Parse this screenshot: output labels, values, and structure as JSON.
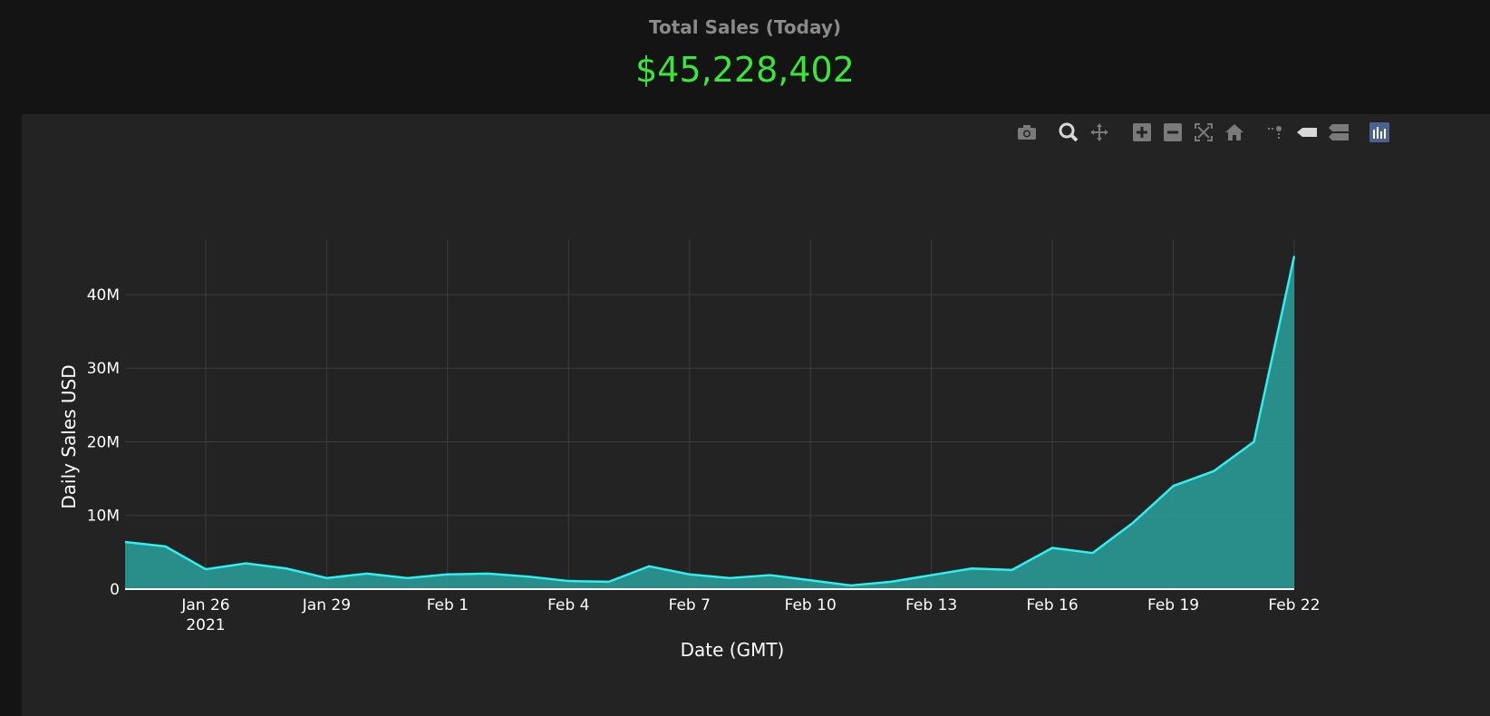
{
  "header": {
    "title": "Total Sales (Today)",
    "value": "$45,228,402",
    "value_color": "#39e639"
  },
  "modebar": {
    "buttons": [
      {
        "name": "camera-icon"
      },
      {
        "name": "zoom-icon"
      },
      {
        "name": "pan-icon"
      },
      {
        "name": "zoom-in-icon"
      },
      {
        "name": "zoom-out-icon"
      },
      {
        "name": "autoscale-icon"
      },
      {
        "name": "reset-axes-icon"
      },
      {
        "name": "spike-lines-icon"
      },
      {
        "name": "hover-closest-icon"
      },
      {
        "name": "hover-compare-icon"
      },
      {
        "name": "plotly-logo-icon"
      }
    ]
  },
  "chart_data": {
    "type": "area",
    "xlabel": "Date (GMT)",
    "ylabel": "Daily Sales USD",
    "ylim": [
      0,
      47500000
    ],
    "grid": true,
    "line_color": "#2ff0f0",
    "fill_color": "#2a9a96",
    "x_tick_labels": [
      "Jan 26",
      "Jan 29",
      "Feb 1",
      "Feb 4",
      "Feb 7",
      "Feb 10",
      "Feb 13",
      "Feb 16",
      "Feb 19",
      "Feb 22"
    ],
    "x_tick_sublabel": "2021",
    "y_tick_labels": [
      "0",
      "10M",
      "20M",
      "30M",
      "40M"
    ],
    "y_tick_values": [
      0,
      10000000,
      20000000,
      30000000,
      40000000
    ],
    "x": [
      "2021-01-24",
      "2021-01-25",
      "2021-01-26",
      "2021-01-27",
      "2021-01-28",
      "2021-01-29",
      "2021-01-30",
      "2021-01-31",
      "2021-02-01",
      "2021-02-02",
      "2021-02-03",
      "2021-02-04",
      "2021-02-05",
      "2021-02-06",
      "2021-02-07",
      "2021-02-08",
      "2021-02-09",
      "2021-02-10",
      "2021-02-11",
      "2021-02-12",
      "2021-02-13",
      "2021-02-14",
      "2021-02-15",
      "2021-02-16",
      "2021-02-17",
      "2021-02-18",
      "2021-02-19",
      "2021-02-20",
      "2021-02-21",
      "2021-02-22"
    ],
    "values": [
      6400000,
      5800000,
      2700000,
      3500000,
      2800000,
      1500000,
      2100000,
      1500000,
      2000000,
      2100000,
      1700000,
      1100000,
      1000000,
      3100000,
      2000000,
      1500000,
      1900000,
      1200000,
      500000,
      1000000,
      1900000,
      2800000,
      2600000,
      5600000,
      4900000,
      9000000,
      14000000,
      16000000,
      20000000,
      45228402
    ]
  }
}
